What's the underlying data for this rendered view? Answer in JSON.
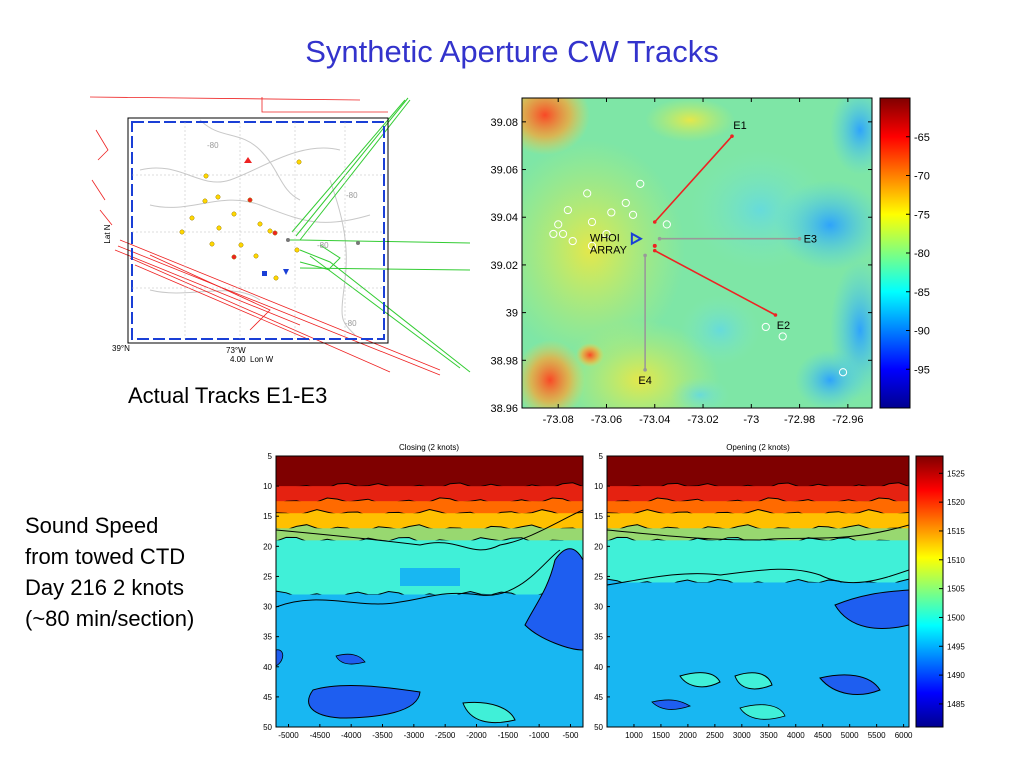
{
  "slide": {
    "title": "Synthetic Aperture CW Tracks",
    "caption_tracks": "Actual Tracks E1-E3",
    "caption_sound": [
      "Sound Speed",
      "from towed CTD",
      "Day 216 2 knots",
      "(~80 min/section)"
    ]
  },
  "track_map": {
    "corner_lat": "39°N",
    "corner_lon": "73°W",
    "scale_label": "4.00",
    "xlabel": "Lon W",
    "ylabel": "Lat N",
    "contour_labels": [
      "-80",
      "-80",
      "-80",
      "-80"
    ]
  },
  "colors": {
    "title": "#3333cc",
    "actual_tracks": "#33cc33",
    "planned_tracks": "#ee2222",
    "leg_line": "#ee2222",
    "e_lines": "#999999",
    "array_marker": "#1a3fd6"
  },
  "chart_data": [
    {
      "type": "heatmap",
      "name": "bathymetry-map",
      "xlim": [
        -73.095,
        -72.95
      ],
      "ylim": [
        38.96,
        39.09
      ],
      "x_ticks": [
        -73.08,
        -73.06,
        -73.04,
        -73.02,
        -73.0,
        -72.98,
        -72.96
      ],
      "x_tick_labels": [
        "-73.08",
        "-73.06",
        "-73.04",
        "-73.02",
        "-73",
        "-72.98",
        "-72.96"
      ],
      "y_ticks": [
        38.96,
        38.98,
        39.0,
        39.02,
        39.04,
        39.06,
        39.08
      ],
      "y_tick_labels": [
        "38.96",
        "38.98",
        "39",
        "39.02",
        "39.04",
        "39.06",
        "39.08"
      ],
      "colorbar": {
        "range": [
          -100,
          -60
        ],
        "ticks": [
          -95,
          -90,
          -85,
          -80,
          -75,
          -70,
          -65
        ]
      },
      "array": {
        "label": [
          "WHOI",
          "ARRAY"
        ],
        "x": -73.047,
        "y": 39.031
      },
      "center": {
        "x": -73.04,
        "y": 39.028
      },
      "tracks": [
        {
          "label": "E1",
          "kind": "red",
          "from": [
            -73.04,
            39.038
          ],
          "to": [
            -73.008,
            39.074
          ]
        },
        {
          "label": "E2",
          "kind": "red",
          "from": [
            -73.04,
            39.026
          ],
          "to": [
            -72.99,
            38.999
          ]
        },
        {
          "label": "E3",
          "kind": "gray",
          "from": [
            -73.038,
            39.031
          ],
          "to": [
            -72.98,
            39.031
          ]
        },
        {
          "label": "E4",
          "kind": "gray",
          "from": [
            -73.044,
            39.024
          ],
          "to": [
            -73.044,
            38.976
          ]
        }
      ],
      "circles": [
        [
          -73.046,
          39.054
        ],
        [
          -73.068,
          39.05
        ],
        [
          -73.052,
          39.046
        ],
        [
          -73.076,
          39.043
        ],
        [
          -73.058,
          39.042
        ],
        [
          -73.049,
          39.041
        ],
        [
          -73.066,
          39.038
        ],
        [
          -73.08,
          39.037
        ],
        [
          -73.035,
          39.037
        ],
        [
          -73.078,
          39.033
        ],
        [
          -73.082,
          39.033
        ],
        [
          -73.06,
          39.033
        ],
        [
          -73.074,
          39.03
        ],
        [
          -73.066,
          39.028
        ],
        [
          -72.994,
          38.994
        ],
        [
          -72.987,
          38.99
        ],
        [
          -72.962,
          38.975
        ]
      ]
    },
    {
      "type": "heatmap",
      "name": "sound-speed-closing",
      "title": "Closing (2 knots)",
      "xlim": [
        -5200,
        -300
      ],
      "ylim": [
        5,
        50
      ],
      "x_ticks": [
        -5000,
        -4500,
        -4000,
        -3500,
        -3000,
        -2500,
        -2000,
        -1500,
        -1000,
        -500
      ],
      "y_ticks": [
        5,
        10,
        15,
        20,
        25,
        30,
        35,
        40,
        45,
        50
      ],
      "layers": [
        {
          "top": 5,
          "bottom": 10,
          "color": "#7f0000"
        },
        {
          "top": 10,
          "bottom": 12.5,
          "color": "#e52211"
        },
        {
          "top": 12.5,
          "bottom": 14.5,
          "color": "#ff6a00"
        },
        {
          "top": 14.5,
          "bottom": 17,
          "color": "#ffc000"
        },
        {
          "top": 17,
          "bottom": 19,
          "color": "#98d870"
        },
        {
          "top": 19,
          "bottom": 28,
          "color": "#40f0d8"
        },
        {
          "top": 28,
          "bottom": 50,
          "color": "#18b7f2"
        }
      ]
    },
    {
      "type": "heatmap",
      "name": "sound-speed-opening",
      "title": "Opening (2 knots)",
      "xlim": [
        500,
        6100
      ],
      "ylim": [
        5,
        50
      ],
      "x_ticks": [
        1000,
        1500,
        2000,
        2500,
        3000,
        3500,
        4000,
        4500,
        5000,
        5500,
        6000
      ],
      "y_ticks": [
        5,
        10,
        15,
        20,
        25,
        30,
        35,
        40,
        45,
        50
      ],
      "layers": [
        {
          "top": 5,
          "bottom": 10,
          "color": "#7f0000"
        },
        {
          "top": 10,
          "bottom": 12.5,
          "color": "#e52211"
        },
        {
          "top": 12.5,
          "bottom": 14.5,
          "color": "#ff6a00"
        },
        {
          "top": 14.5,
          "bottom": 17,
          "color": "#ffc000"
        },
        {
          "top": 17,
          "bottom": 19,
          "color": "#98d870"
        },
        {
          "top": 19,
          "bottom": 26,
          "color": "#40f0d8"
        },
        {
          "top": 26,
          "bottom": 50,
          "color": "#18b7f2"
        }
      ]
    },
    {
      "type": "heatmap",
      "name": "sound-speed-colorbar",
      "range": [
        1481,
        1528
      ],
      "ticks": [
        1485,
        1490,
        1495,
        1500,
        1505,
        1510,
        1515,
        1520,
        1525
      ]
    }
  ]
}
